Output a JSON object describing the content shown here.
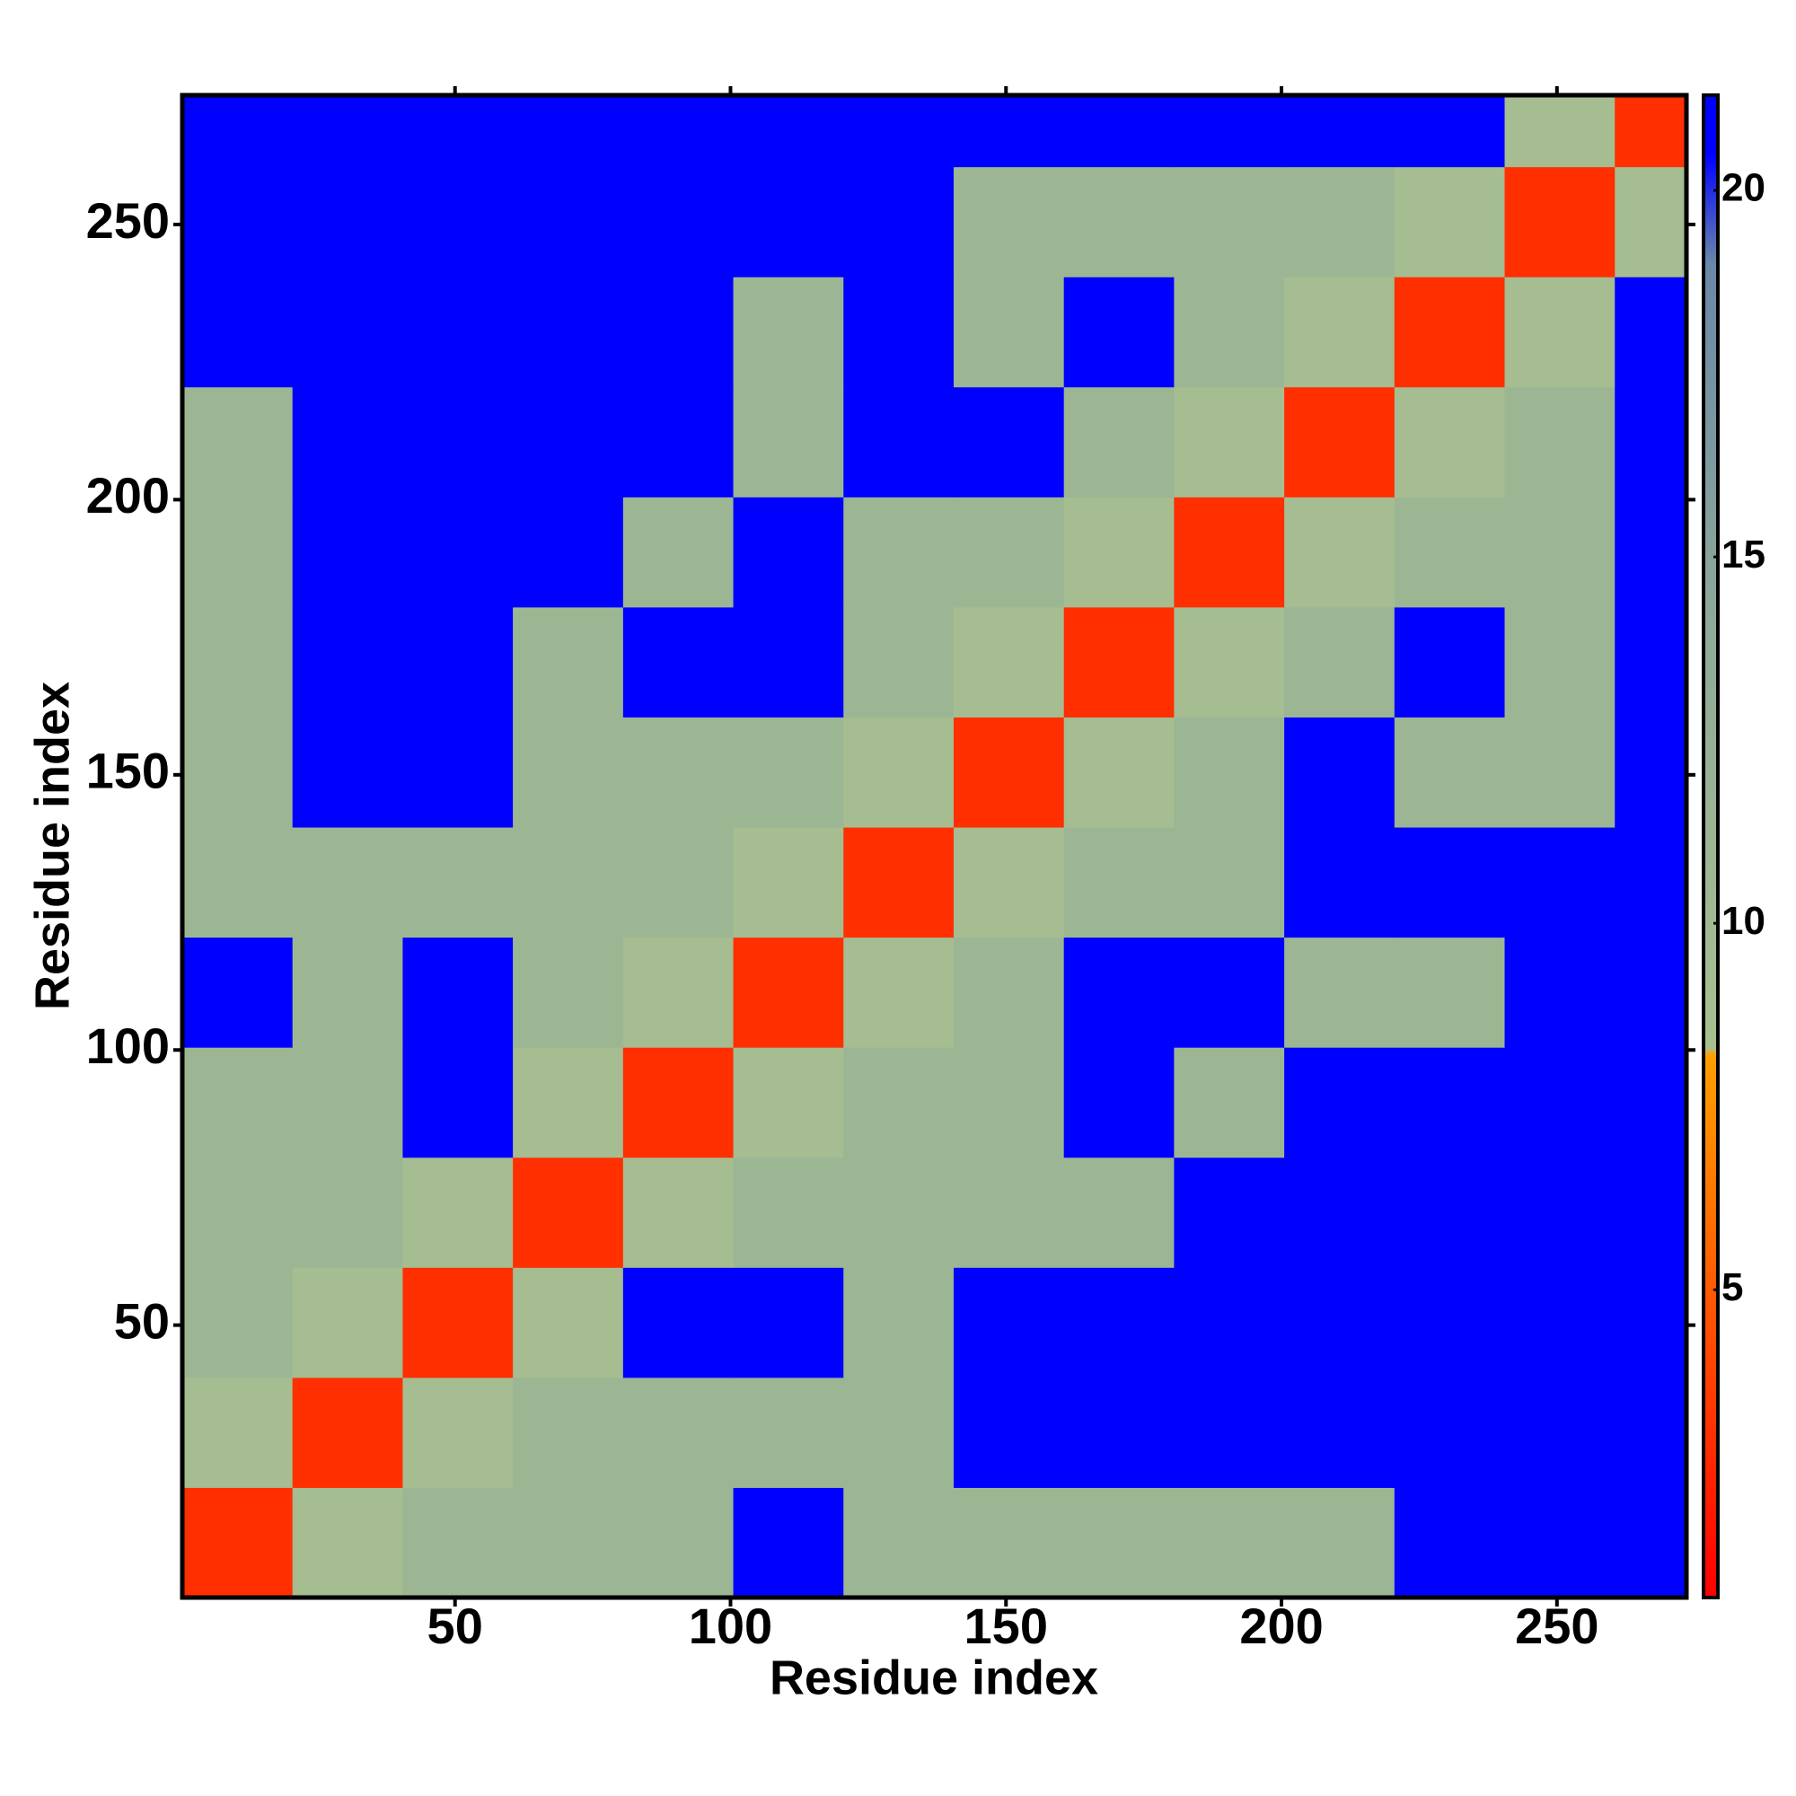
{
  "chart_data": {
    "type": "heatmap",
    "xlabel": "Residue index",
    "ylabel": "Residue index",
    "xbins": [
      0.5,
      20.5,
      40.5,
      60.5,
      80.5,
      100.5,
      120.5,
      140.5,
      160.5,
      180.5,
      200.5,
      220.5,
      240.5,
      260.5,
      273.5
    ],
    "ybins": [
      0.5,
      20.5,
      40.5,
      60.5,
      80.5,
      100.5,
      120.5,
      140.5,
      160.5,
      180.5,
      200.5,
      220.5,
      240.5,
      260.5,
      273.5
    ],
    "values": [
      [
        3,
        9,
        11,
        11,
        11,
        21,
        11,
        11,
        11,
        11,
        11,
        21,
        21,
        21
      ],
      [
        9,
        3,
        9,
        11,
        11,
        11,
        11,
        21,
        21,
        21,
        21,
        21,
        21,
        21
      ],
      [
        11,
        9,
        3,
        9,
        21,
        21,
        11,
        21,
        21,
        21,
        21,
        21,
        21,
        21
      ],
      [
        11,
        11,
        9,
        3,
        9,
        11,
        11,
        11,
        11,
        21,
        21,
        21,
        21,
        21
      ],
      [
        11,
        11,
        21,
        9,
        3,
        9,
        11,
        11,
        21,
        11,
        21,
        21,
        21,
        21
      ],
      [
        21,
        11,
        21,
        11,
        9,
        3,
        9,
        11,
        21,
        21,
        11,
        11,
        21,
        21
      ],
      [
        11,
        11,
        11,
        11,
        11,
        9,
        3,
        9,
        11,
        11,
        21,
        21,
        21,
        21
      ],
      [
        11,
        21,
        21,
        11,
        11,
        11,
        9,
        3,
        9,
        11,
        21,
        11,
        11,
        21
      ],
      [
        11,
        21,
        21,
        11,
        21,
        21,
        11,
        9,
        3,
        9,
        11,
        21,
        11,
        21
      ],
      [
        11,
        21,
        21,
        21,
        11,
        21,
        11,
        11,
        9,
        3,
        9,
        11,
        11,
        21
      ],
      [
        11,
        21,
        21,
        21,
        21,
        11,
        21,
        21,
        11,
        9,
        3,
        9,
        11,
        21
      ],
      [
        21,
        21,
        21,
        21,
        21,
        11,
        21,
        11,
        21,
        11,
        9,
        3,
        9,
        21
      ],
      [
        21,
        21,
        21,
        21,
        21,
        21,
        21,
        11,
        11,
        11,
        11,
        9,
        3,
        9
      ],
      [
        21,
        21,
        21,
        21,
        21,
        21,
        21,
        21,
        21,
        21,
        21,
        21,
        9,
        3
      ]
    ],
    "xlim": [
      0.5,
      273.5
    ],
    "ylim": [
      0.5,
      273.5
    ],
    "xticks": [
      50,
      100,
      150,
      200,
      250
    ],
    "yticks": [
      50,
      100,
      150,
      200,
      250
    ],
    "colorbar": {
      "lim": [
        0.8,
        21.3
      ],
      "ticks": [
        5,
        10,
        15,
        20
      ]
    },
    "colorscale": [
      [
        0.8,
        "#ff0000"
      ],
      [
        5,
        "#ff5a00"
      ],
      [
        8.2,
        "#ffa000"
      ],
      [
        8.3,
        "#a8c090"
      ],
      [
        14,
        "#8faa98"
      ],
      [
        19,
        "#6a88a8"
      ],
      [
        20.5,
        "#0000ff"
      ]
    ]
  }
}
